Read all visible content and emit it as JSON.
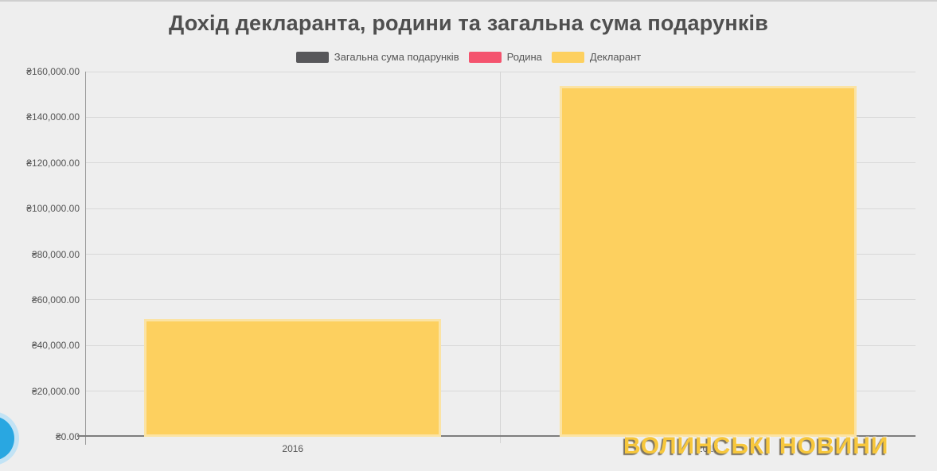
{
  "page": {
    "background": "#eeeeee"
  },
  "chart_data": {
    "type": "bar",
    "title": "Дохід декларанта, родини та загальна сума подарунків",
    "categories": [
      "2016",
      "2017"
    ],
    "series": [
      {
        "name": "Загальна сума подарунків",
        "color": "#57575a",
        "values": [
          0,
          0
        ]
      },
      {
        "name": "Родина",
        "color": "#f4536e",
        "values": [
          0,
          0
        ]
      },
      {
        "name": "Декларант",
        "color": "#fdd05f",
        "border_color": "#fbe3a4",
        "values": [
          51600,
          153700
        ]
      }
    ],
    "xlabel": "",
    "ylabel": "",
    "ylim": [
      0,
      160000
    ],
    "ytick_step": 20000,
    "ytick_labels": [
      "₴0.00",
      "₴20,000.00",
      "₴40,000.00",
      "₴60,000.00",
      "₴80,000.00",
      "₴100,000.00",
      "₴120,000.00",
      "₴140,000.00",
      "₴160,000.00"
    ],
    "currency_symbol": "₴",
    "grid": true,
    "legend_position": "top",
    "colors": {
      "grid": "#d8d8d8",
      "axis": "#7d7d7d",
      "tick_text": "#555555",
      "zero_marker": "#aaa083"
    }
  },
  "watermark": {
    "text": "ВОЛИНСЬКІ НОВИНИ",
    "color": "#f7c73c"
  },
  "logo": {
    "shape": "blue-circle",
    "inner_color": "#29a7e1",
    "ring_color": "#c2e3f5"
  }
}
